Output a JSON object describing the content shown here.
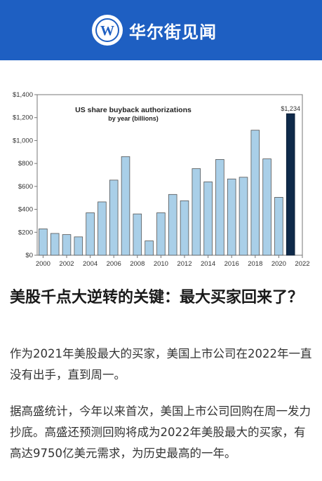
{
  "brand": {
    "name": "华尔街见闻",
    "logo_letter": "W",
    "header_color": "#1e5fc2"
  },
  "chart_data": {
    "type": "bar",
    "title": "US share buyback authorizations",
    "subtitle": "by year (billions)",
    "x": [
      2000,
      2001,
      2002,
      2003,
      2004,
      2005,
      2006,
      2007,
      2008,
      2009,
      2010,
      2011,
      2012,
      2013,
      2014,
      2015,
      2016,
      2017,
      2018,
      2019,
      2020,
      2021
    ],
    "values": [
      230,
      190,
      180,
      160,
      370,
      465,
      655,
      860,
      360,
      125,
      370,
      530,
      475,
      755,
      640,
      835,
      665,
      680,
      1090,
      840,
      505,
      1234
    ],
    "highlight_index": 21,
    "highlight_label": "$1,234",
    "bar_color": "#a9cfe8",
    "highlight_color": "#0f2a4a",
    "ylim": [
      0,
      1400
    ],
    "xlim": [
      1999.5,
      2022
    ],
    "yticks": [
      0,
      200,
      400,
      600,
      800,
      1000,
      1200,
      1400
    ],
    "ytick_labels": [
      "$0",
      "$200",
      "$400",
      "$600",
      "$800",
      "$1,000",
      "$1,200",
      "$1,400"
    ],
    "xticks": [
      2000,
      2002,
      2004,
      2006,
      2008,
      2010,
      2012,
      2014,
      2016,
      2018,
      2020,
      2022
    ],
    "xtick_labels": [
      "2000",
      "2002",
      "2004",
      "2006",
      "2008",
      "2010",
      "2012",
      "2014",
      "2016",
      "2018",
      "2020",
      "2022"
    ],
    "grid": false
  },
  "article": {
    "title": "美股千点大逆转的关键：最大买家回来了？",
    "paragraphs": [
      "作为2021年美股最大的买家，美国上市公司在2022年一直没有出手，直到周一。",
      "据高盛统计，今年以来首次，美国上市公司回购在周一发力抄底。高盛还预测回购将成为2022年美股最大的买家，有高达9750亿美元需求，为历史最高的一年。"
    ]
  }
}
